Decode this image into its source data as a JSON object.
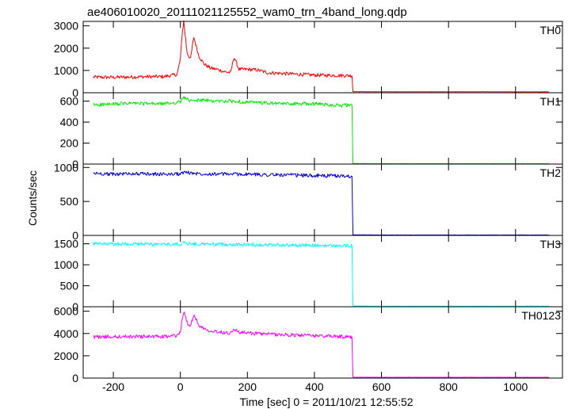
{
  "chart_data": {
    "type": "line",
    "title": "ae406010020_20111021125552_wam0_trn_4band_long.qdp",
    "xlabel": "Time [sec] 0 = 2011/10/21 12:55:52",
    "ylabel": "Counts/sec",
    "xlim": [
      -290,
      1140
    ],
    "xticks": [
      -200,
      0,
      200,
      400,
      600,
      800,
      1000
    ],
    "grid": false,
    "panels": [
      {
        "label": "TH0",
        "color": "#ff0000",
        "ylim": [
          0,
          3200
        ],
        "yticks": [
          0,
          1000,
          2000,
          3000
        ],
        "series": {
          "x": [
            -260,
            -200,
            -150,
            -100,
            -50,
            -10,
            0,
            5,
            10,
            20,
            30,
            40,
            55,
            70,
            90,
            110,
            130,
            150,
            160,
            175,
            200,
            230,
            260,
            300,
            350,
            400,
            450,
            505,
            512,
            515,
            600,
            700,
            800,
            900,
            1000,
            1100
          ],
          "y": [
            700,
            690,
            705,
            720,
            720,
            820,
            1500,
            2600,
            3200,
            1800,
            1500,
            2500,
            1650,
            1300,
            1100,
            1050,
            950,
            900,
            1600,
            1050,
            1050,
            1020,
            900,
            870,
            830,
            790,
            780,
            770,
            760,
            50,
            45,
            45,
            45,
            45,
            40,
            40
          ]
        }
      },
      {
        "label": "TH1",
        "color": "#00ee00",
        "ylim": [
          0,
          680
        ],
        "yticks": [
          0,
          200,
          400,
          600
        ],
        "series": {
          "x": [
            -260,
            -200,
            -150,
            -100,
            -50,
            0,
            10,
            30,
            60,
            100,
            150,
            200,
            300,
            400,
            480,
            505,
            512,
            515,
            600,
            800,
            1000,
            1100
          ],
          "y": [
            565,
            570,
            580,
            575,
            575,
            590,
            640,
            600,
            610,
            600,
            600,
            590,
            575,
            575,
            560,
            560,
            560,
            5,
            4,
            4,
            4,
            4
          ]
        }
      },
      {
        "label": "TH2",
        "color": "#0000dd",
        "ylim": [
          0,
          1050
        ],
        "yticks": [
          0,
          500,
          1000
        ],
        "series": {
          "x": [
            -260,
            -200,
            -150,
            -100,
            -50,
            0,
            10,
            50,
            100,
            200,
            300,
            400,
            480,
            505,
            512,
            515,
            600,
            800,
            1000,
            1100
          ],
          "y": [
            915,
            900,
            910,
            905,
            900,
            905,
            930,
            910,
            905,
            900,
            890,
            880,
            875,
            870,
            870,
            8,
            6,
            6,
            6,
            6
          ]
        }
      },
      {
        "label": "TH3",
        "color": "#00ffff",
        "ylim": [
          0,
          1700
        ],
        "yticks": [
          0,
          500,
          1000,
          1500
        ],
        "series": {
          "x": [
            -260,
            -200,
            -150,
            -100,
            -50,
            0,
            10,
            50,
            100,
            200,
            300,
            400,
            480,
            505,
            512,
            515,
            600,
            800,
            1000,
            1100
          ],
          "y": [
            1500,
            1490,
            1500,
            1490,
            1480,
            1490,
            1520,
            1490,
            1490,
            1480,
            1470,
            1460,
            1450,
            1450,
            1450,
            20,
            15,
            15,
            15,
            15
          ]
        }
      },
      {
        "label": "TH0123",
        "color": "#ff00ff",
        "ylim": [
          0,
          6400
        ],
        "yticks": [
          0,
          2000,
          4000,
          6000
        ],
        "series": {
          "x": [
            -260,
            -200,
            -150,
            -100,
            -50,
            -10,
            0,
            10,
            20,
            30,
            40,
            60,
            80,
            100,
            130,
            150,
            160,
            175,
            200,
            250,
            300,
            350,
            400,
            450,
            505,
            512,
            515,
            600,
            800,
            1000,
            1100
          ],
          "y": [
            3700,
            3700,
            3720,
            3730,
            3720,
            3800,
            4200,
            6000,
            5000,
            4700,
            5600,
            4600,
            4350,
            4200,
            4100,
            4050,
            4400,
            4100,
            4050,
            3950,
            3900,
            3850,
            3800,
            3750,
            3700,
            3700,
            80,
            70,
            70,
            70,
            70
          ]
        }
      }
    ]
  }
}
